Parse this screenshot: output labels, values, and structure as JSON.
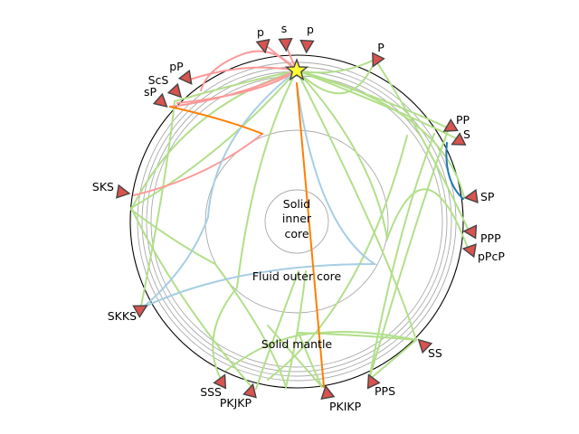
{
  "figure": {
    "layer_labels": {
      "inner_core": [
        "Solid",
        "inner",
        "core"
      ],
      "outer_core": "Fluid outer core",
      "mantle": "Solid mantle"
    },
    "source_marker": "star-icon",
    "station_marker": "triangle-icon",
    "colors": {
      "P": "#b2df8a",
      "S": "#fb9a99",
      "K": "#a6cee3",
      "I": "#ff7f00",
      "diffracted": "#1f78b4",
      "station": "#d9534f",
      "source": "#ffff33"
    },
    "stations": [
      {
        "name": "p"
      },
      {
        "name": "s"
      },
      {
        "name": "p"
      },
      {
        "name": "P"
      },
      {
        "name": "pP"
      },
      {
        "name": "ScS"
      },
      {
        "name": "sP"
      },
      {
        "name": "PP"
      },
      {
        "name": "S"
      },
      {
        "name": "SP"
      },
      {
        "name": "PPP"
      },
      {
        "name": "pPcP"
      },
      {
        "name": "SKS"
      },
      {
        "name": "SKKS"
      },
      {
        "name": "SS"
      },
      {
        "name": "PPS"
      },
      {
        "name": "PKIKP"
      },
      {
        "name": "PKJKP"
      },
      {
        "name": "SSS"
      }
    ]
  }
}
